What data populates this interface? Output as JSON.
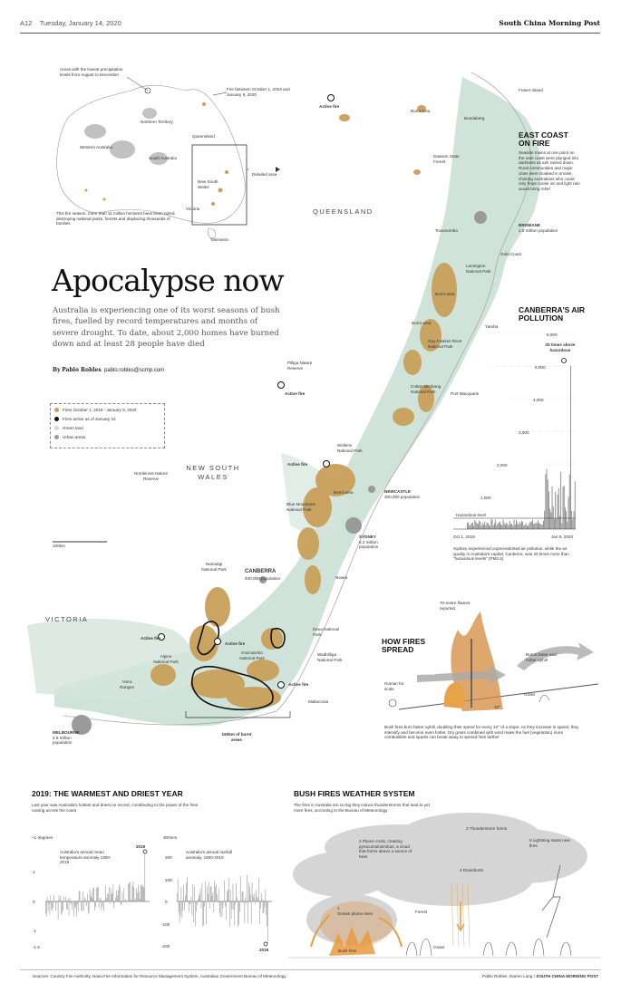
{
  "header": {
    "page": "A12",
    "date": "Tuesday, January 14, 2020",
    "publication": "South China Morning Post"
  },
  "colors": {
    "fire": "#c9a05a",
    "land": "#c8ded3",
    "active": "#111111",
    "urban": "#9a9a9a"
  },
  "inset": {
    "lowest_precip": "Areas with the lowest precipitation levels from August to December",
    "fire_between": "Fire between October 1, 2019 and January 9, 2020",
    "regions": [
      "Northern Territory",
      "Western Australia",
      "South Australia",
      "Queensland",
      "New South Wales",
      "Victoria",
      "Tasmania"
    ],
    "detailed": "Detailed area",
    "caption": "This fire season, more than 11 million hectares have been razed, destroying national parks, forests and displacing thousands of families"
  },
  "headline": "Apocalypse now",
  "standfirst": "Australia is experiencing one of its worst seasons of bush fires, fuelled by record temperatures and months of severe drought. To date, about 2,000 homes have burned down and at least 28 people have died",
  "byline": {
    "prefix": "By",
    "author": "Pablo Robles",
    "email": "pablo.robles@scmp.com"
  },
  "legend": [
    "Fires October 1, 2019 - January 9, 2020",
    "Fires active as of January 12",
    "Green land",
    "Urban areas"
  ],
  "map_labels": {
    "queensland": "QUEENSLAND",
    "nsw": "NEW SOUTH WALES",
    "victoria": "VICTORIA",
    "active_fire": "Active fire",
    "burnt_area": "Burnt area",
    "fraser": "Fraser Island",
    "bundaberg": "Bundaberg",
    "dawson": "Dawson State Forest",
    "toowoomba": "Toowoomba",
    "gold_coast": "Gold Coast",
    "lamington": "Lamington National Park",
    "yamba": "Yamba",
    "guy_fawkes": "Guy Fawkes River National Park",
    "cottan": "Cottan-Bimbang National Park",
    "port_macq": "Port Macquarie",
    "pilliga": "Pilliga Nature Reserve",
    "wollemi": "Wollemi National Park",
    "blue_mtn": "Blue Mountains National Park",
    "nombinnie": "Nombinnie Nature Reserve",
    "namadgi": "Namadgi National Park",
    "nowra": "Nowra",
    "deua": "Deua National Park",
    "wadbilliga": "Wadbilliga National Park",
    "kosciuszko": "Kosciuszko National Park",
    "alpine": "Alpine National Park",
    "yarra": "Yarra Ranges",
    "mallacoota": "Mallacoota",
    "scale": "100km",
    "burnt_160": "160km of burnt areas"
  },
  "east_coast": {
    "title": "EAST COAST ON FIRE",
    "body": "Seaside towns at one point on the east coast were plunged into darkness as ash rained down. Rural communities and major cities were cloaked in smoke, choking Australians who could only hope cooler air and light rain would bring relief"
  },
  "cities": {
    "brisbane": {
      "name": "BRISBANE",
      "pop": "2.5 million population"
    },
    "newcastle": {
      "name": "NEWCASTLE",
      "pop": "300,000 population"
    },
    "sydney": {
      "name": "SYDNEY",
      "pop": "5.2 million population"
    },
    "canberra": {
      "name": "CANBERRA",
      "pop": "400,000 population"
    },
    "melbourne": {
      "name": "MELBOURNE",
      "pop": "4.8 million population"
    }
  },
  "canberra_air": {
    "title": "CANBERRA'S AIR POLLUTION",
    "peak_label": "20 times above hazardous",
    "yticks": [
      "6,000",
      "5,000",
      "4,000",
      "3,000",
      "2,000",
      "1,000"
    ],
    "hazard": "Hazardous level",
    "xstart": "Oct 1, 2019",
    "xend": "Jan 9, 2020",
    "caption": "Sydney experienced unprecedented air pollution, while the air quality in Australia's capital, Canberra, was 20 times more than \"hazardous levels\" (PM2.5)"
  },
  "fires_spread": {
    "title": "HOW FIRES SPREAD",
    "flames": "70-metre flames reported",
    "human": "Human for scale",
    "wind": "WIND",
    "uphill": "Burns faster and hotter uphill",
    "grass": "Grass",
    "angle": "10°",
    "caption": "Bush fires burn faster uphill, doubling their speed for every 10° of a slope. As they increase in speed, they intensify and become even hotter. Dry grass combined with wind make the fuel (vegetation) more combustible and sparks can break away to spread fires farther"
  },
  "warmest": {
    "title": "2019: THE WARMEST AND DRIEST YEAR",
    "intro": "Last year was Australia's hottest and driest on record, contributing to the power of the fires roaring across the coast",
    "temp_label": "Australia's annual mean temperature anomaly 1900-2019",
    "temp_unit": "+1 degrees",
    "temp_ticks": [
      "1",
      "0",
      "-1",
      "-1.5"
    ],
    "rain_label": "Australia's annual rainfall anomaly, 1900-2019",
    "rain_unit": "300mm",
    "rain_ticks": [
      "200",
      "100",
      "0",
      "-100",
      "-200"
    ],
    "year": "2019"
  },
  "weather": {
    "title": "BUSH FIRES WEATHER SYSTEM",
    "intro": "The fires in Australia are so big they induce thunderstorms that lead to yet more fires, according to the Bureau of Meteorology",
    "steps": [
      {
        "n": "1",
        "text": "Smoke plume rises"
      },
      {
        "n": "2",
        "text": "Plume cools, creating pyrocumulonimbus, a cloud that forms above a source of heat"
      },
      {
        "n": "3",
        "text": "Thunderstorm forms"
      },
      {
        "n": "4",
        "text": "Downburst"
      },
      {
        "n": "5",
        "text": "Lightning starts new fires"
      }
    ],
    "forest": "Forest",
    "bushfires": "Bush fires",
    "grass": "Grass"
  },
  "footer": {
    "sources": "Sources: Country Fire Authority, Nasa Fire Information for Resource Management System, Australian Government Bureau of Meteorology",
    "credit": "Pablo Robles, Darren Long /",
    "brand": "SOUTH CHINA MORNING POST"
  }
}
